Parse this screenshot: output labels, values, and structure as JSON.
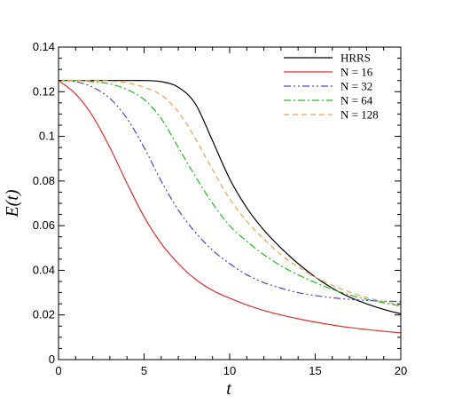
{
  "chart_data": {
    "type": "line",
    "title": "",
    "xlabel": "t",
    "ylabel": "E(t)",
    "xlim": [
      0,
      20
    ],
    "ylim": [
      0,
      0.14
    ],
    "xticks": [
      0,
      5,
      10,
      15,
      20
    ],
    "xtick_labels": [
      "0",
      "5",
      "10",
      "15",
      "20"
    ],
    "yticks": [
      0,
      0.02,
      0.04,
      0.06,
      0.08,
      0.1,
      0.12,
      0.14
    ],
    "ytick_labels": [
      "0",
      "0.02",
      "0.04",
      "0.06",
      "0.08",
      "0.1",
      "0.12",
      "0.14"
    ],
    "grid": false,
    "legend_position": "top-right",
    "x": [
      0,
      1,
      2,
      3,
      4,
      5,
      6,
      7,
      8,
      9,
      10,
      11,
      12,
      13,
      14,
      15,
      16,
      17,
      18,
      19,
      20
    ],
    "series": [
      {
        "name": "HRRS",
        "color": "#000000",
        "dash": "solid",
        "values": [
          0.125,
          0.125,
          0.125,
          0.125,
          0.125,
          0.125,
          0.1245,
          0.122,
          0.1145,
          0.098,
          0.081,
          0.068,
          0.058,
          0.05,
          0.043,
          0.037,
          0.032,
          0.028,
          0.025,
          0.0225,
          0.0205
        ]
      },
      {
        "name": "N = 16",
        "color": "#e03030",
        "dash": "solid",
        "values": [
          0.125,
          0.119,
          0.109,
          0.095,
          0.079,
          0.064,
          0.052,
          0.043,
          0.036,
          0.031,
          0.0275,
          0.0245,
          0.022,
          0.02,
          0.0183,
          0.0168,
          0.0155,
          0.0144,
          0.0135,
          0.0127,
          0.012
        ]
      },
      {
        "name": "N = 32",
        "color": "#4444dd",
        "dash": "dashdotdot",
        "values": [
          0.125,
          0.1245,
          0.122,
          0.117,
          0.108,
          0.095,
          0.08,
          0.067,
          0.057,
          0.049,
          0.043,
          0.038,
          0.0345,
          0.032,
          0.03,
          0.0287,
          0.0277,
          0.027,
          0.0265,
          0.0262,
          0.026
        ]
      },
      {
        "name": "N = 64",
        "color": "#22bb22",
        "dash": "dashdot",
        "values": [
          0.125,
          0.125,
          0.1245,
          0.1235,
          0.121,
          0.1165,
          0.108,
          0.095,
          0.082,
          0.07,
          0.06,
          0.053,
          0.047,
          0.042,
          0.038,
          0.0345,
          0.0315,
          0.029,
          0.027,
          0.0255,
          0.024
        ]
      },
      {
        "name": "N = 128",
        "color": "#f0a050",
        "dash": "dashed",
        "values": [
          0.125,
          0.125,
          0.125,
          0.1248,
          0.124,
          0.122,
          0.1185,
          0.111,
          0.099,
          0.085,
          0.072,
          0.062,
          0.054,
          0.047,
          0.0415,
          0.037,
          0.0333,
          0.0303,
          0.0278,
          0.026,
          0.0245
        ]
      }
    ]
  }
}
